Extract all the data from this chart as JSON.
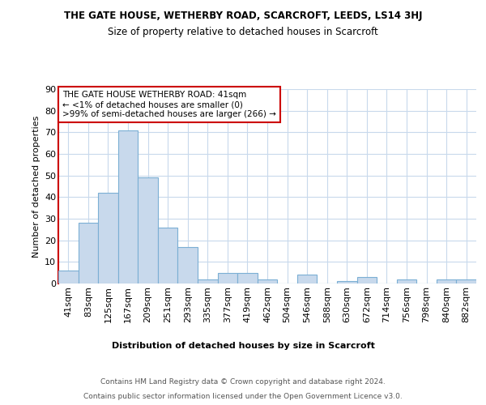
{
  "title": "THE GATE HOUSE, WETHERBY ROAD, SCARCROFT, LEEDS, LS14 3HJ",
  "subtitle": "Size of property relative to detached houses in Scarcroft",
  "xlabel": "Distribution of detached houses by size in Scarcroft",
  "ylabel": "Number of detached properties",
  "categories": [
    "41sqm",
    "83sqm",
    "125sqm",
    "167sqm",
    "209sqm",
    "251sqm",
    "293sqm",
    "335sqm",
    "377sqm",
    "419sqm",
    "462sqm",
    "504sqm",
    "546sqm",
    "588sqm",
    "630sqm",
    "672sqm",
    "714sqm",
    "756sqm",
    "798sqm",
    "840sqm",
    "882sqm"
  ],
  "values": [
    6,
    28,
    42,
    71,
    49,
    26,
    17,
    2,
    5,
    5,
    2,
    0,
    4,
    0,
    1,
    3,
    0,
    2,
    0,
    2,
    2
  ],
  "bar_color": "#c8d9ec",
  "bar_edge_color": "#7bafd4",
  "ylim": [
    0,
    90
  ],
  "yticks": [
    0,
    10,
    20,
    30,
    40,
    50,
    60,
    70,
    80,
    90
  ],
  "annotation_box_text": "THE GATE HOUSE WETHERBY ROAD: 41sqm\n← <1% of detached houses are smaller (0)\n>99% of semi-detached houses are larger (266) →",
  "annotation_box_color": "#ffffff",
  "annotation_box_edge_color": "#cc0000",
  "footer_line1": "Contains HM Land Registry data © Crown copyright and database right 2024.",
  "footer_line2": "Contains public sector information licensed under the Open Government Licence v3.0.",
  "background_color": "#ffffff",
  "grid_color": "#c8d9ec",
  "title_fontsize": 8.5,
  "subtitle_fontsize": 8.5,
  "axis_fontsize": 8,
  "tick_fontsize": 8,
  "footer_fontsize": 6.5,
  "annotation_fontsize": 7.5
}
